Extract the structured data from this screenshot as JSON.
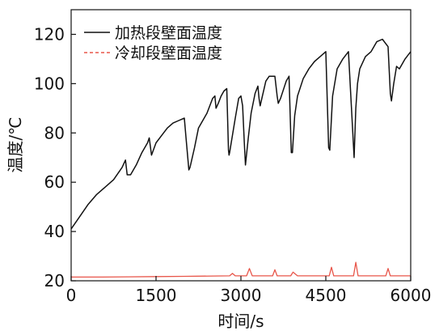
{
  "chart_data": {
    "type": "line",
    "xlabel": "时间/s",
    "ylabel": "温度/℃",
    "xlim": [
      0,
      6000
    ],
    "ylim": [
      20,
      130
    ],
    "xticks": [
      0,
      1500,
      3000,
      4500,
      6000
    ],
    "yticks": [
      20,
      40,
      60,
      80,
      100,
      120
    ],
    "xtick_labels": [
      "0",
      "1500",
      "3000",
      "4500",
      "6000"
    ],
    "ytick_labels": [
      "20",
      "40",
      "60",
      "80",
      "100",
      "120"
    ],
    "grid": false,
    "legend_position": "top-left",
    "series": [
      {
        "name": "加热段壁面温度",
        "color": "#111111",
        "style": "solid",
        "x": [
          0,
          150,
          300,
          450,
          600,
          750,
          900,
          960,
          990,
          1050,
          1150,
          1250,
          1350,
          1380,
          1420,
          1500,
          1600,
          1700,
          1800,
          1900,
          2000,
          2030,
          2080,
          2100,
          2180,
          2250,
          2300,
          2400,
          2500,
          2540,
          2560,
          2600,
          2650,
          2700,
          2750,
          2780,
          2790,
          2800,
          2900,
          2960,
          3000,
          3030,
          3060,
          3080,
          3130,
          3180,
          3250,
          3300,
          3320,
          3340,
          3380,
          3440,
          3500,
          3600,
          3640,
          3660,
          3700,
          3800,
          3850,
          3890,
          3910,
          3950,
          4000,
          4100,
          4200,
          4300,
          4400,
          4500,
          4550,
          4570,
          4620,
          4700,
          4800,
          4900,
          5000,
          5030,
          5060,
          5100,
          5200,
          5300,
          5400,
          5500,
          5600,
          5640,
          5660,
          5700,
          5750,
          5800,
          5850,
          5900,
          6000
        ],
        "y": [
          41,
          46,
          51,
          55,
          58,
          61,
          66,
          69,
          63,
          63,
          67,
          72,
          76,
          78,
          71,
          76,
          79,
          82,
          84,
          85,
          86,
          78,
          65,
          66,
          74,
          82,
          84,
          88,
          94,
          95,
          90,
          92,
          95,
          97,
          98,
          73,
          71,
          72,
          86,
          94,
          95,
          91,
          76,
          67,
          78,
          88,
          96,
          99,
          94,
          91,
          95,
          101,
          103,
          103,
          95,
          92,
          94,
          101,
          103,
          72,
          72,
          87,
          95,
          102,
          106,
          109,
          111,
          113,
          74,
          73,
          95,
          106,
          110,
          113,
          70,
          90,
          100,
          106,
          111,
          113,
          117,
          118,
          115,
          96,
          93,
          100,
          107,
          106,
          108,
          110,
          113
        ]
      },
      {
        "name": "冷却段壁面温度",
        "color": "#e8564a",
        "style": "dashed",
        "x": [
          0,
          500,
          1000,
          1500,
          2000,
          2800,
          2850,
          2900,
          3000,
          3100,
          3150,
          3200,
          3300,
          3560,
          3600,
          3640,
          3800,
          3880,
          3920,
          4000,
          4400,
          4560,
          4600,
          4640,
          4800,
          4990,
          5030,
          5070,
          5200,
          5560,
          5600,
          5640,
          5800,
          6000
        ],
        "y": [
          21.5,
          21.5,
          21.6,
          21.7,
          21.8,
          22.0,
          23.0,
          22.0,
          22.0,
          22.0,
          25.0,
          22.0,
          22.0,
          22.0,
          24.5,
          22.0,
          22.0,
          22.0,
          23.5,
          22.0,
          22.0,
          22.0,
          25.5,
          22.0,
          22.0,
          22.0,
          27.5,
          22.0,
          22.0,
          22.0,
          25.0,
          22.0,
          22.0,
          22.0
        ]
      }
    ]
  }
}
